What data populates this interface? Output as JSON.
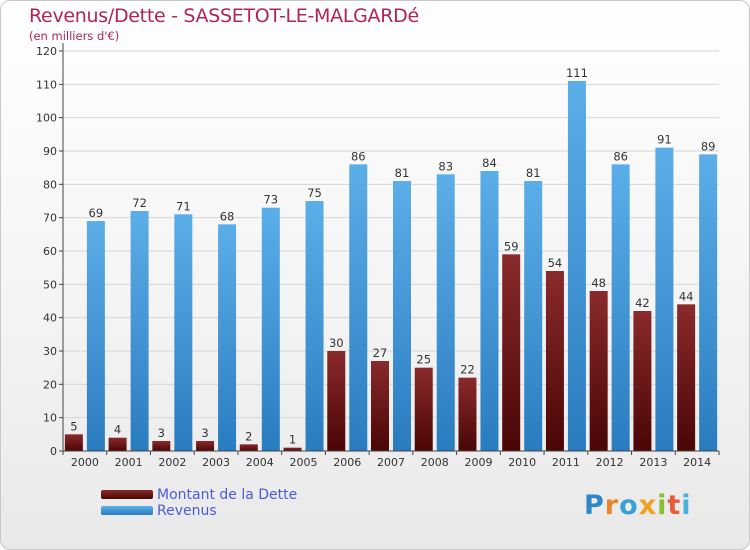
{
  "title": "Revenus/Dette - SASSETOT-LE-MALGARDé",
  "subtitle": "(en milliers d'€)",
  "logo_text": "Proxiti",
  "colors": {
    "title": "#b0245a",
    "debt_top": "#8a2a2c",
    "debt_bottom": "#4a0505",
    "revenue_top": "#5caee8",
    "revenue_bottom": "#2a7cc0",
    "legend_text": "#4a5bd8"
  },
  "chart_data": {
    "type": "bar",
    "categories": [
      "2000",
      "2001",
      "2002",
      "2003",
      "2004",
      "2005",
      "2006",
      "2007",
      "2008",
      "2009",
      "2010",
      "2011",
      "2012",
      "2013",
      "2014"
    ],
    "series": [
      {
        "name": "Montant de la Dette",
        "values": [
          5,
          4,
          3,
          3,
          2,
          1,
          30,
          27,
          25,
          22,
          59,
          54,
          48,
          42,
          44
        ]
      },
      {
        "name": "Revenus",
        "values": [
          69,
          72,
          71,
          68,
          73,
          75,
          86,
          81,
          83,
          84,
          81,
          111,
          86,
          91,
          89
        ]
      }
    ],
    "ylim": [
      0,
      120
    ],
    "yticks": [
      0,
      10,
      20,
      30,
      40,
      50,
      60,
      70,
      80,
      90,
      100,
      110,
      120
    ],
    "grid": true,
    "legend_position": "bottom-left"
  }
}
